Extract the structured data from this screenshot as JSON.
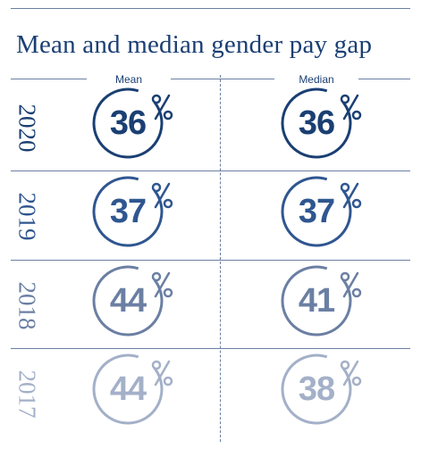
{
  "title": "Mean and median gender pay gap",
  "columns": {
    "mean": "Mean",
    "median": "Median"
  },
  "rows": [
    {
      "year": "2020",
      "mean": "36",
      "median": "36"
    },
    {
      "year": "2019",
      "mean": "37",
      "median": "37"
    },
    {
      "year": "2018",
      "mean": "44",
      "median": "41"
    },
    {
      "year": "2017",
      "mean": "44",
      "median": "38"
    }
  ],
  "colors": {
    "2020": "#1a3f73",
    "2019": "#2f5690",
    "2018": "#6b7fa3",
    "2017": "#a3b0c8"
  },
  "chart_data": {
    "type": "table",
    "title": "Mean and median gender pay gap",
    "categories": [
      "2020",
      "2019",
      "2018",
      "2017"
    ],
    "series": [
      {
        "name": "Mean",
        "values": [
          36,
          37,
          44,
          44
        ]
      },
      {
        "name": "Median",
        "values": [
          36,
          37,
          41,
          38
        ]
      }
    ],
    "unit": "%"
  }
}
